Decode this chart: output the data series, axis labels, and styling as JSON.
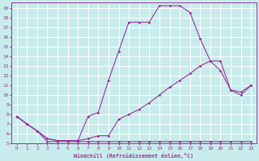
{
  "xlabel": "Windchill (Refroidissement éolien,°C)",
  "background_color": "#c8ecec",
  "line_color": "#993399",
  "grid_color": "#ffffff",
  "xlim": [
    -0.5,
    23.5
  ],
  "ylim": [
    5,
    19.5
  ],
  "xticks": [
    0,
    1,
    2,
    3,
    4,
    5,
    6,
    7,
    8,
    9,
    10,
    11,
    12,
    13,
    14,
    15,
    16,
    17,
    18,
    19,
    20,
    21,
    22,
    23
  ],
  "yticks": [
    5,
    6,
    7,
    8,
    9,
    10,
    11,
    12,
    13,
    14,
    15,
    16,
    17,
    18,
    19
  ],
  "line1_x": [
    0,
    1,
    2,
    3,
    4,
    5,
    6,
    7,
    8,
    9,
    10,
    11,
    12,
    13,
    14,
    15,
    16,
    17,
    18,
    19,
    20,
    21,
    22,
    23
  ],
  "line1_y": [
    7.8,
    7.0,
    6.3,
    5.2,
    5.2,
    5.2,
    5.2,
    5.2,
    5.2,
    5.2,
    5.2,
    5.2,
    5.2,
    5.2,
    5.2,
    5.2,
    5.2,
    5.2,
    5.2,
    5.2,
    5.2,
    5.2,
    5.2,
    5.2
  ],
  "line2_x": [
    0,
    1,
    2,
    3,
    4,
    5,
    6,
    7,
    8,
    9,
    10,
    11,
    12,
    13,
    14,
    15,
    16,
    17,
    18,
    19,
    20,
    21,
    22,
    23
  ],
  "line2_y": [
    7.8,
    7.0,
    6.3,
    5.5,
    5.3,
    5.3,
    5.3,
    5.5,
    5.8,
    5.8,
    7.5,
    8.0,
    8.5,
    9.2,
    10.0,
    10.8,
    11.5,
    12.2,
    13.0,
    13.5,
    13.5,
    10.5,
    10.3,
    11.0
  ],
  "line3_x": [
    0,
    1,
    2,
    3,
    4,
    5,
    6,
    7,
    8,
    9,
    10,
    11,
    12,
    13,
    14,
    15,
    16,
    17,
    18,
    19,
    20,
    21,
    22,
    23
  ],
  "line3_y": [
    7.8,
    7.0,
    6.3,
    5.5,
    5.3,
    5.3,
    5.3,
    7.8,
    8.2,
    11.5,
    14.5,
    17.5,
    17.5,
    17.5,
    19.2,
    19.2,
    19.2,
    18.5,
    15.8,
    13.5,
    12.5,
    10.5,
    10.0,
    11.0
  ]
}
